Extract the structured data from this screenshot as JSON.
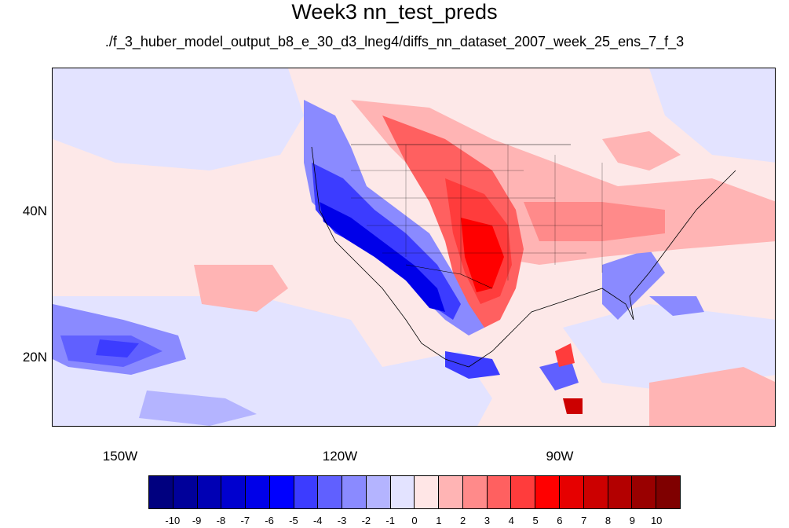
{
  "title": "Week3 nn_test_preds",
  "subtitle": "./f_3_huber_model_output_b8_e_30_d3_lneg4/diffs_nn_dataset_2007_week_25_ens_7_f_3",
  "map": {
    "lon_labels": [
      "150W",
      "120W",
      "90W"
    ],
    "lat_labels": [
      "40N",
      "20N"
    ],
    "background_color": "#fde8e8"
  },
  "colorbar": {
    "labels": [
      "-10",
      "-9",
      "-8",
      "-7",
      "-6",
      "-5",
      "-4",
      "-3",
      "-2",
      "-1",
      "0",
      "1",
      "2",
      "3",
      "4",
      "5",
      "6",
      "7",
      "8",
      "9",
      "10"
    ],
    "colors": [
      "#00007f",
      "#00009a",
      "#0000b4",
      "#0000cf",
      "#0000e9",
      "#0000ff",
      "#3c3cff",
      "#6060ff",
      "#8a8aff",
      "#b4b4ff",
      "#e3e3ff",
      "#ffe6e6",
      "#ffb4b4",
      "#ff8a8a",
      "#ff6060",
      "#ff3c3c",
      "#ff0000",
      "#e60000",
      "#cc0000",
      "#b30000",
      "#990000",
      "#7f0000"
    ]
  }
}
